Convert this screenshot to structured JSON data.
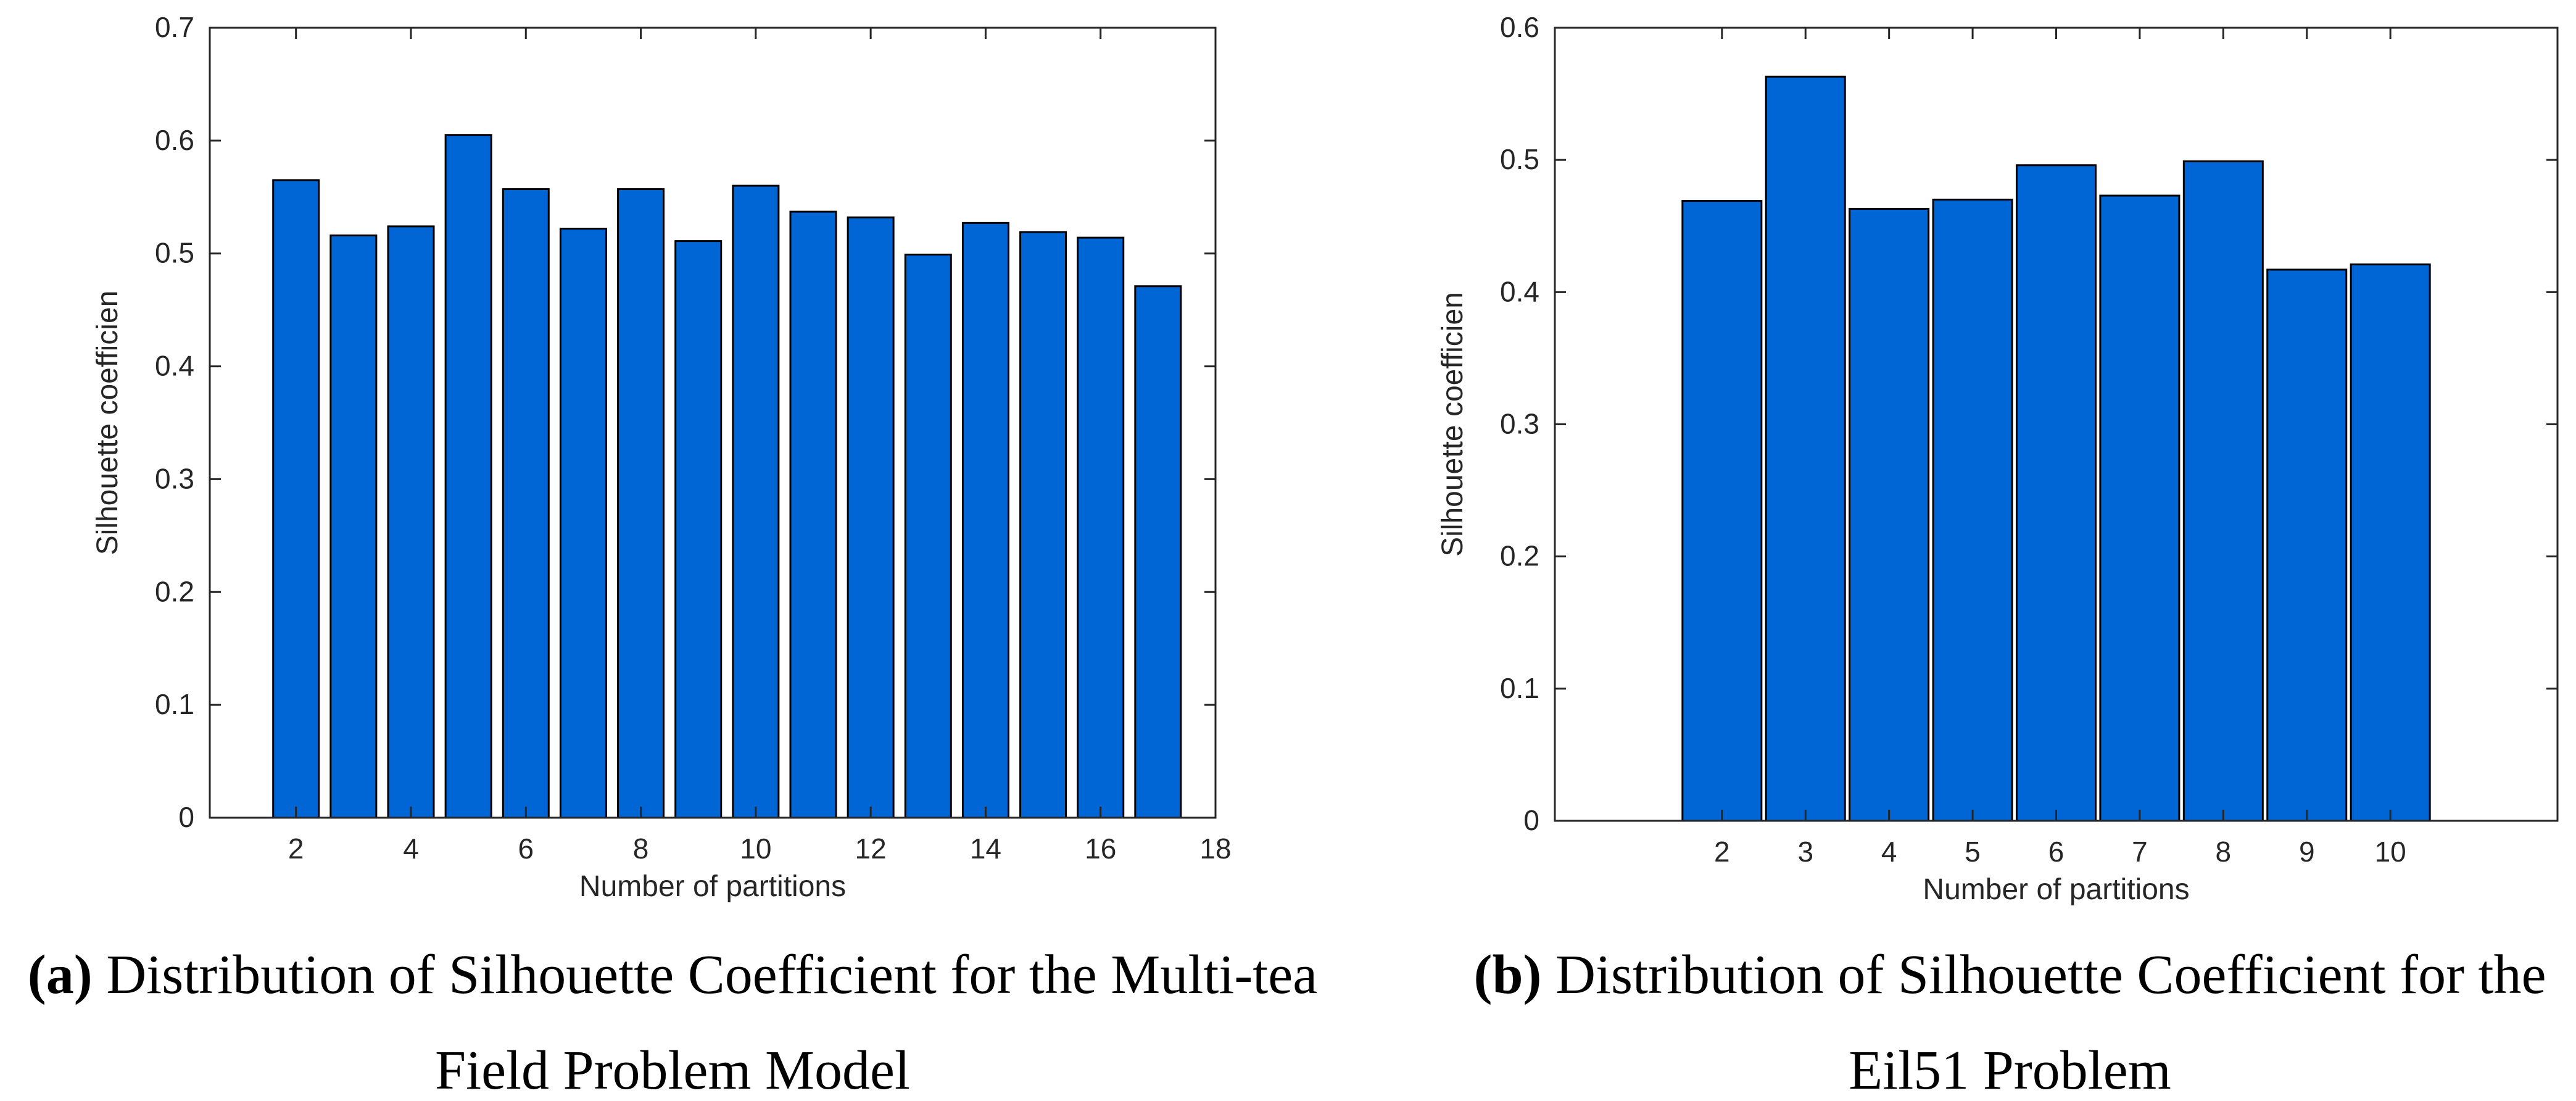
{
  "charts": [
    {
      "id": "a",
      "chart_data": {
        "type": "bar",
        "categories": [
          2,
          3,
          4,
          5,
          6,
          7,
          8,
          9,
          10,
          11,
          12,
          13,
          14,
          15,
          16,
          17
        ],
        "values": [
          0.565,
          0.516,
          0.524,
          0.605,
          0.557,
          0.522,
          0.557,
          0.511,
          0.56,
          0.537,
          0.532,
          0.499,
          0.527,
          0.519,
          0.514,
          0.471
        ],
        "xlabel": "Number of partitions",
        "ylabel": "Silhouette coefficien",
        "xlim": [
          0.5,
          18
        ],
        "ylim": [
          0,
          0.7
        ],
        "xticks": [
          2,
          4,
          6,
          8,
          10,
          12,
          14,
          16,
          18
        ],
        "yticks": [
          0,
          0.1,
          0.2,
          0.3,
          0.4,
          0.5,
          0.6,
          0.7
        ],
        "yticklabels": [
          "0",
          "0.1",
          "0.2",
          "0.3",
          "0.4",
          "0.5",
          "0.6",
          "0.7"
        ],
        "bar_color": "#0066d6",
        "grid": false
      },
      "caption": {
        "label": "(a)",
        "line1": "Distribution of Silhouette Coefficient for the Multi-tea",
        "line2": "Field Problem Model"
      }
    },
    {
      "id": "b",
      "chart_data": {
        "type": "bar",
        "categories": [
          2,
          3,
          4,
          5,
          6,
          7,
          8,
          9,
          10
        ],
        "values": [
          0.469,
          0.563,
          0.463,
          0.47,
          0.496,
          0.473,
          0.499,
          0.417,
          0.421
        ],
        "xlabel": "Number of partitions",
        "ylabel": "Silhouette coefficien",
        "xlim": [
          0,
          12
        ],
        "ylim": [
          0,
          0.6
        ],
        "xticks": [
          2,
          3,
          4,
          5,
          6,
          7,
          8,
          9,
          10
        ],
        "yticks": [
          0,
          0.1,
          0.2,
          0.3,
          0.4,
          0.5,
          0.6
        ],
        "yticklabels": [
          "0",
          "0.1",
          "0.2",
          "0.3",
          "0.4",
          "0.5",
          "0.6"
        ],
        "bar_color": "#0066d6",
        "grid": false
      },
      "caption": {
        "label": "(b)",
        "line1": "Distribution of Silhouette Coefficient for the",
        "line2": "Eil51 Problem"
      }
    }
  ]
}
